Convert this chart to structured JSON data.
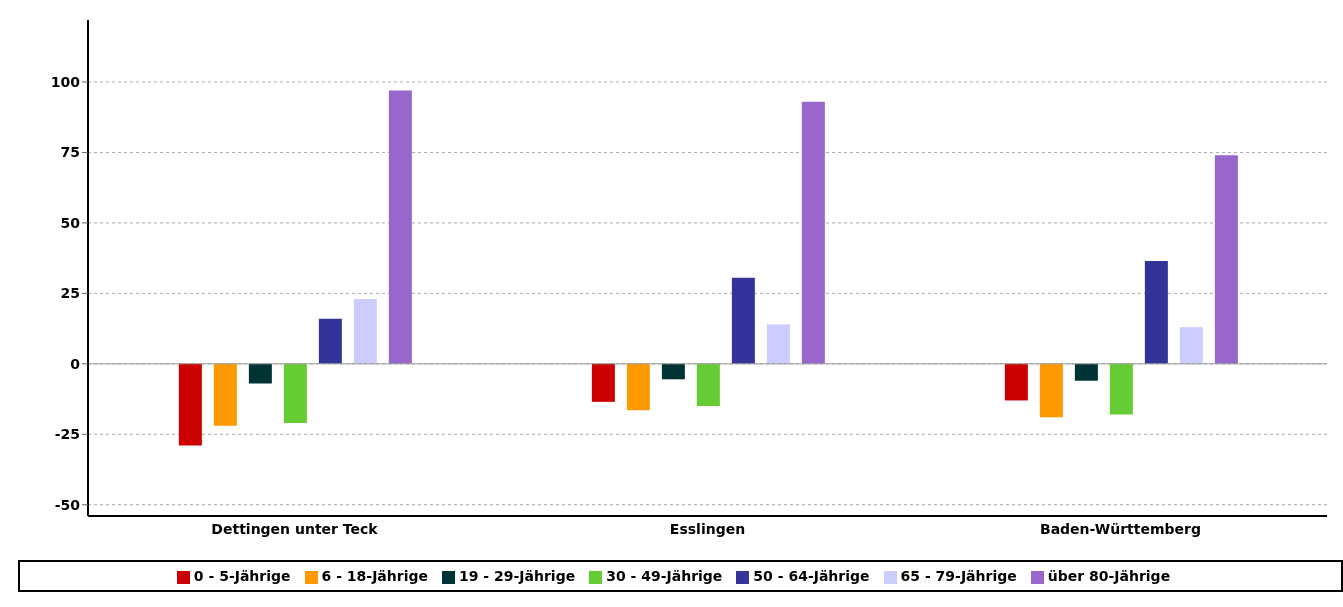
{
  "chart_data": {
    "type": "bar",
    "categories": [
      "Dettingen unter Teck",
      "Esslingen",
      "Baden-Württemberg"
    ],
    "series": [
      {
        "name": "0 - 5-Jährige",
        "color": "#cc0000",
        "values": [
          -29,
          -13.5,
          -13
        ]
      },
      {
        "name": "6 - 18-Jährige",
        "color": "#ff9900",
        "values": [
          -22,
          -16.5,
          -19
        ]
      },
      {
        "name": "19 - 29-Jährige",
        "color": "#003333",
        "values": [
          -7,
          -5.5,
          -6
        ]
      },
      {
        "name": "30 - 49-Jährige",
        "color": "#66cc33",
        "values": [
          -21,
          -15,
          -18
        ]
      },
      {
        "name": "50 - 64-Jährige",
        "color": "#333399",
        "values": [
          16,
          30.5,
          36.5
        ]
      },
      {
        "name": "65 - 79-Jährige",
        "color": "#ccccff",
        "values": [
          23,
          14,
          13
        ]
      },
      {
        "name": "über 80-Jährige",
        "color": "#9966cc",
        "values": [
          97,
          93,
          74
        ]
      }
    ],
    "ylim": [
      -54,
      122
    ],
    "yticks": [
      -50,
      -25,
      0,
      25,
      50,
      75,
      100
    ],
    "grid": "y",
    "legend": "bottom"
  }
}
